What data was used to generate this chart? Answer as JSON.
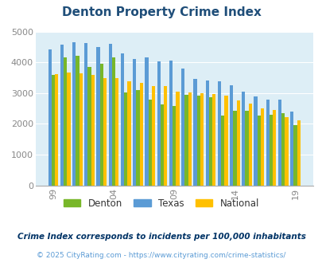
{
  "title": "Denton Property Crime Index",
  "subtitle": "Crime Index corresponds to incidents per 100,000 inhabitants",
  "footer": "© 2025 CityRating.com - https://www.cityrating.com/crime-statistics/",
  "years": [
    1999,
    2000,
    2001,
    2002,
    2003,
    2004,
    2005,
    2006,
    2007,
    2008,
    2009,
    2010,
    2011,
    2012,
    2013,
    2014,
    2015,
    2016,
    2017,
    2018,
    2019
  ],
  "denton": [
    3600,
    4150,
    4200,
    3850,
    3950,
    4150,
    3020,
    3100,
    2780,
    2620,
    2580,
    2940,
    2920,
    2860,
    2280,
    2430,
    2430,
    2270,
    2300,
    2340,
    1950
  ],
  "texas": [
    4420,
    4580,
    4640,
    4620,
    4500,
    4600,
    4300,
    4100,
    4150,
    4020,
    4050,
    3810,
    3460,
    3410,
    3390,
    3260,
    3060,
    2880,
    2800,
    2780,
    2400
  ],
  "national": [
    3620,
    3670,
    3650,
    3590,
    3490,
    3500,
    3390,
    3340,
    3230,
    3220,
    3060,
    3020,
    2990,
    2960,
    2910,
    2770,
    2650,
    2500,
    2460,
    2220,
    2120
  ],
  "bar_width": 0.28,
  "ylim": [
    0,
    5000
  ],
  "yticks": [
    0,
    1000,
    2000,
    3000,
    4000,
    5000
  ],
  "xtick_years": [
    1999,
    2004,
    2009,
    2014,
    2019
  ],
  "xtick_labels": [
    "99",
    "04",
    "09",
    "14",
    "19"
  ],
  "color_denton": "#78b729",
  "color_texas": "#5b9bd5",
  "color_national": "#ffc000",
  "bg_color": "#ddeef6",
  "title_color": "#1f4e79",
  "grid_color": "#ffffff",
  "subtitle_color": "#003366",
  "footer_color": "#5b9bd5",
  "legend_labels": [
    "Denton",
    "Texas",
    "National"
  ]
}
